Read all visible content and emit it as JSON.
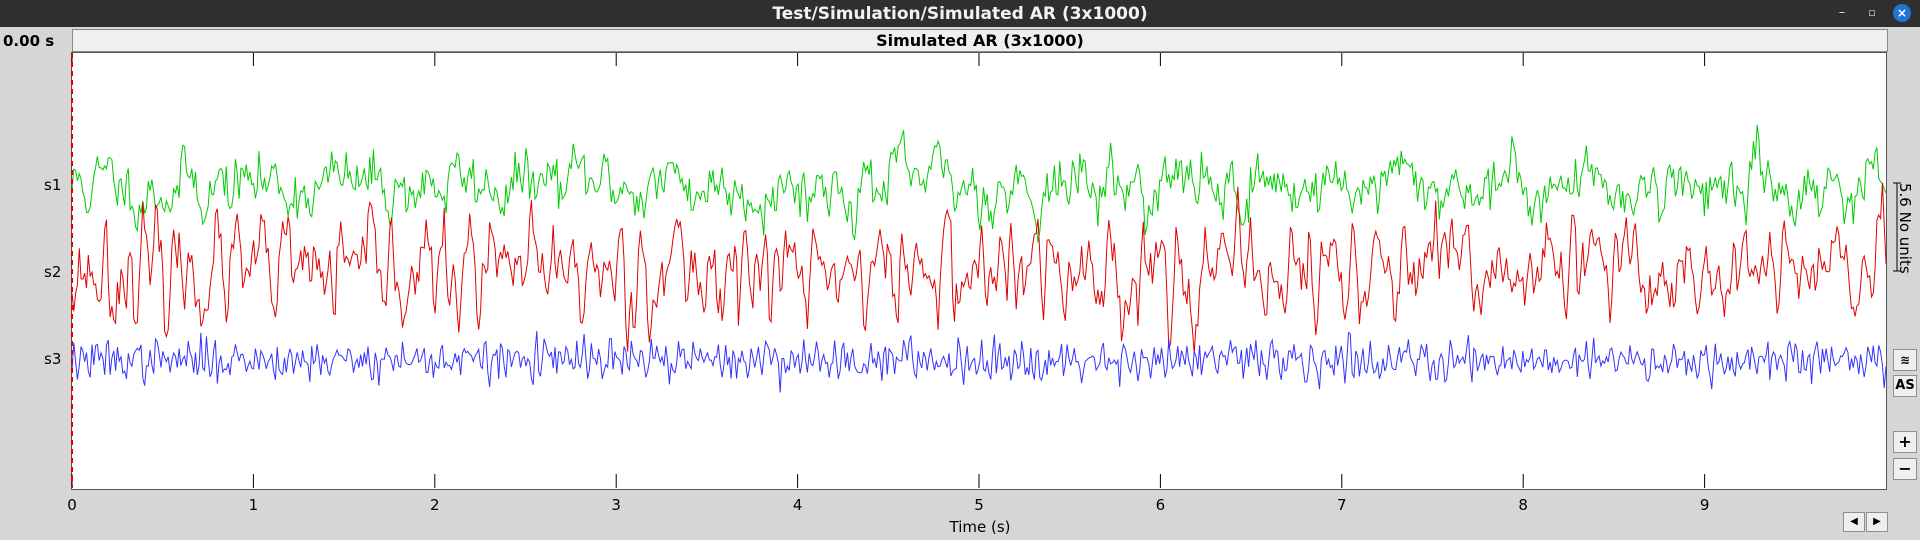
{
  "window": {
    "title": "Test/Simulation/Simulated AR (3x1000)"
  },
  "toolbar": {
    "current_time": "0.00 s"
  },
  "plot": {
    "title": "Simulated AR (3x1000)",
    "xlabel": "Time (s)",
    "xtick_labels": [
      "0",
      "1",
      "2",
      "3",
      "4",
      "5",
      "6",
      "7",
      "8",
      "9"
    ],
    "scale_label": "5.6 No units"
  },
  "sidebar": {
    "autoscale_label": "AS",
    "zoom_in_label": "+",
    "zoom_out_label": "−",
    "waves_label": "≋"
  },
  "navigation": {
    "prev_label": "◀",
    "next_label": "▶"
  },
  "colors": {
    "s1": "#00cc00",
    "s2": "#e00000",
    "s3": "#3333ff",
    "cursor": "#e00000"
  },
  "chart_data": {
    "type": "line",
    "x_range": [
      0,
      10
    ],
    "xlabel": "Time (s)",
    "samples_per_series": 1000,
    "series": [
      {
        "name": "s1",
        "amplitude_hint": 1.0
      },
      {
        "name": "s2",
        "amplitude_hint": 1.2
      },
      {
        "name": "s3",
        "amplitude_hint": 0.9
      }
    ],
    "grid": false
  }
}
